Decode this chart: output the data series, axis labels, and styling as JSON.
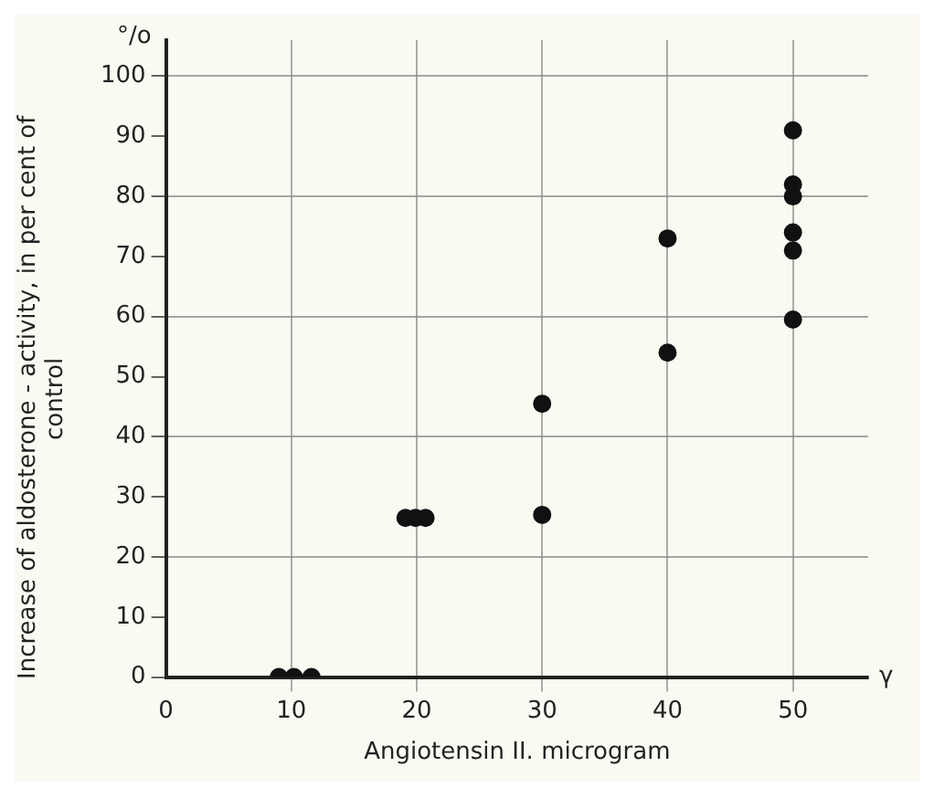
{
  "chart_data": {
    "type": "scatter",
    "xlabel": "Angiotensin II. microgram",
    "ylabel": "Increase of aldosterone - activity, in per cent of control",
    "annotations": [
      "°/o",
      "γ"
    ],
    "series": [
      {
        "color": "#111111",
        "x": [
          9,
          10.2,
          11.6,
          19.1,
          19.9,
          20.7,
          30,
          30,
          40,
          40,
          50,
          50,
          50,
          50,
          50,
          50
        ],
        "values": [
          0,
          0,
          0,
          26.5,
          26.5,
          26.5,
          45.5,
          27,
          73,
          54,
          91,
          82,
          80,
          74,
          71,
          59.5
        ]
      }
    ],
    "xlim": [
      0,
      56
    ],
    "xticks": [
      0,
      10,
      20,
      30,
      40,
      50
    ],
    "ylim": [
      0,
      106
    ],
    "yticks": [
      0,
      10,
      20,
      30,
      40,
      50,
      60,
      70,
      80,
      90,
      100
    ],
    "grid": true,
    "marker": "circle",
    "legend": false
  }
}
